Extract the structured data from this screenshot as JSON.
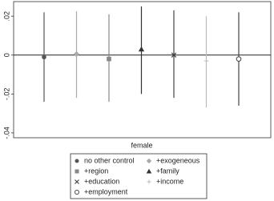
{
  "chart_data": {
    "type": "coefplot",
    "x_label": "female",
    "ylim": [
      -0.0425,
      0.0275
    ],
    "yticks": [
      {
        "value": 0.02,
        "label": ".02"
      },
      0,
      {
        "value": -0.02,
        "label": "-.02"
      },
      {
        "value": -0.04,
        "label": "-.04"
      }
    ],
    "reference_line": 0,
    "series": [
      {
        "name": "no other control",
        "color": "#555555",
        "marker": "circle",
        "values": [
          -0.001
        ],
        "ci_low": [
          -0.024
        ],
        "ci_high": [
          0.022
        ]
      },
      {
        "name": "+exogeneous",
        "color": "#aaaaaa",
        "marker": "diamond",
        "values": [
          0.0005
        ],
        "ci_low": [
          -0.022
        ],
        "ci_high": [
          0.0225
        ]
      },
      {
        "name": "+region",
        "color": "#888888",
        "marker": "square",
        "values": [
          -0.002
        ],
        "ci_low": [
          -0.024
        ],
        "ci_high": [
          0.021
        ]
      },
      {
        "name": "+family",
        "color": "#333333",
        "marker": "triangle",
        "values": [
          0.003
        ],
        "ci_low": [
          -0.02
        ],
        "ci_high": [
          0.025
        ]
      },
      {
        "name": "+education",
        "color": "#444444",
        "marker": "x",
        "values": [
          0
        ],
        "ci_low": [
          -0.022
        ],
        "ci_high": [
          0.023
        ]
      },
      {
        "name": "+income",
        "color": "#bbbbbb",
        "marker": "plus",
        "values": [
          -0.003
        ],
        "ci_low": [
          -0.027
        ],
        "ci_high": [
          0.02
        ]
      },
      {
        "name": "+employment",
        "color": "#444444",
        "marker": "hollow-circle",
        "values": [
          -0.002
        ],
        "ci_low": [
          -0.026
        ],
        "ci_high": [
          0.022
        ]
      }
    ]
  }
}
